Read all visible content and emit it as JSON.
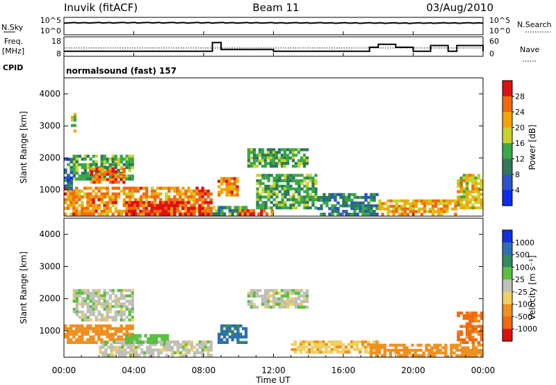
{
  "header": {
    "title": "Inuvik (fitACF)",
    "beam": "Beam 11",
    "date": "03/Aug/2010"
  },
  "nsky": {
    "label": "N.Sky",
    "ticks": [
      "10^5",
      "10^0"
    ],
    "right_label": "N.Search",
    "right_ticks": [
      "10^5",
      "10^0"
    ]
  },
  "freq": {
    "label_line1": "Freq.",
    "label_line2": "[MHz]",
    "ticks": [
      "18",
      "8"
    ],
    "right_label": "Nave",
    "right_ticks": [
      "60",
      "0"
    ]
  },
  "cpid": {
    "label": "CPID",
    "mode": "normalsound (fast) 157"
  },
  "time_axis": {
    "label": "Time UT",
    "ticks": [
      "00:00",
      "04:00",
      "08:00",
      "12:00",
      "16:00",
      "20:00",
      "00:00"
    ]
  },
  "power_panel": {
    "ylabel": "Slant Range [km]",
    "yticks": [
      "4000",
      "3000",
      "2000",
      "1000"
    ],
    "colorbar_label": "Power [dB]",
    "colorbar_ticks": [
      "28",
      "24",
      "20",
      "16",
      "12",
      "8",
      "4"
    ],
    "colors": [
      "#0a2ff0",
      "#2b55c8",
      "#2f7a5a",
      "#3aa84a",
      "#c8d22a",
      "#f5a400",
      "#f06a10",
      "#e01010"
    ]
  },
  "velocity_panel": {
    "ylabel": "Slant Range [km]",
    "yticks": [
      "4000",
      "3000",
      "2000",
      "1000"
    ],
    "colorbar_label": "Velocity [m s⁻¹]",
    "colorbar_ticks": [
      "1000",
      "500",
      "100",
      "25",
      "-25",
      "-100",
      "-500",
      "-1000"
    ],
    "colors": [
      "#1030e0",
      "#2e6fb0",
      "#2f8a5e",
      "#5ac040",
      "#c0c0b8",
      "#f0d060",
      "#f09020",
      "#f06a10",
      "#e01010"
    ]
  },
  "chart_data": [
    {
      "type": "line",
      "title": "N.Sky / N.Search",
      "x": [
        "00:00",
        "04:00",
        "08:00",
        "12:00",
        "16:00",
        "20:00",
        "00:00"
      ],
      "series": [
        {
          "name": "N.Sky",
          "values": [
            6000,
            7000,
            6500,
            6000,
            5500,
            5000,
            5500
          ]
        },
        {
          "name": "N.Search",
          "values": [
            1,
            1,
            1,
            1,
            1,
            1,
            1
          ]
        }
      ],
      "ylim": [
        1,
        100000
      ],
      "yscale": "log"
    },
    {
      "type": "line",
      "title": "Freq. [MHz] / Nave",
      "x": [
        "00:00",
        "04:00",
        "08:00",
        "08:30",
        "09:00",
        "12:00",
        "16:00",
        "17:30",
        "18:00",
        "19:00",
        "20:00",
        "21:00",
        "22:00",
        "22:30",
        "24:00"
      ],
      "series": [
        {
          "name": "Freq. [MHz]",
          "values": [
            10.5,
            10.5,
            10.5,
            15.5,
            11.5,
            10.5,
            10.5,
            12.8,
            14.5,
            12.8,
            10.5,
            13.8,
            10.5,
            13.8,
            10.5
          ]
        },
        {
          "name": "Nave",
          "values": [
            24,
            24,
            24,
            24,
            24,
            24,
            24,
            24,
            24,
            24,
            24,
            24,
            24,
            24,
            24
          ]
        }
      ],
      "ylim": [
        8,
        18
      ]
    },
    {
      "type": "heatmap",
      "title": "Power [dB]",
      "xlabel": "Time UT",
      "ylabel": "Slant Range [km]",
      "xlim": [
        0,
        24
      ],
      "ylim": [
        180,
        4500
      ],
      "clim": [
        0,
        30
      ],
      "regions": [
        {
          "t0": 0.0,
          "t1": 8.5,
          "r0": 200,
          "r1": 1100,
          "value": 24
        },
        {
          "t0": 3.5,
          "t1": 8.5,
          "r0": 200,
          "r1": 650,
          "value": 30
        },
        {
          "t0": 0.5,
          "t1": 4.0,
          "r0": 1300,
          "r1": 2100,
          "value": 14
        },
        {
          "t0": 1.5,
          "t1": 3.5,
          "r0": 1200,
          "r1": 1700,
          "value": 26
        },
        {
          "t0": 0.0,
          "t1": 0.5,
          "r0": 1000,
          "r1": 2000,
          "value": 8
        },
        {
          "t0": 0.4,
          "t1": 0.7,
          "r0": 2800,
          "r1": 3400,
          "value": 18
        },
        {
          "t0": 8.5,
          "t1": 10.5,
          "r0": 200,
          "r1": 500,
          "value": 12
        },
        {
          "t0": 8.8,
          "t1": 10.0,
          "r0": 800,
          "r1": 1400,
          "value": 24
        },
        {
          "t0": 10.0,
          "t1": 12.0,
          "r0": 200,
          "r1": 400,
          "value": 26
        },
        {
          "t0": 10.5,
          "t1": 14.0,
          "r0": 1700,
          "r1": 2300,
          "value": 14
        },
        {
          "t0": 11.0,
          "t1": 14.5,
          "r0": 400,
          "r1": 1500,
          "value": 14
        },
        {
          "t0": 14.5,
          "t1": 18.0,
          "r0": 200,
          "r1": 900,
          "value": 10
        },
        {
          "t0": 18.0,
          "t1": 22.5,
          "r0": 200,
          "r1": 700,
          "value": 22
        },
        {
          "t0": 22.5,
          "t1": 24.0,
          "r0": 400,
          "r1": 1500,
          "value": 20
        }
      ]
    },
    {
      "type": "heatmap",
      "title": "Velocity [m s⁻¹]",
      "xlabel": "Time UT",
      "ylabel": "Slant Range [km]",
      "xlim": [
        0,
        24
      ],
      "ylim": [
        180,
        4500
      ],
      "regions": [
        {
          "t0": 0.0,
          "t1": 4.0,
          "r0": 600,
          "r1": 1200,
          "value": -300
        },
        {
          "t0": 0.5,
          "t1": 4.0,
          "r0": 1300,
          "r1": 2300,
          "value": 0
        },
        {
          "t0": 2.0,
          "t1": 8.5,
          "r0": 200,
          "r1": 700,
          "value": 0
        },
        {
          "t0": 3.5,
          "t1": 6.0,
          "r0": 600,
          "r1": 900,
          "value": 60
        },
        {
          "t0": 8.8,
          "t1": 10.5,
          "r0": 600,
          "r1": 1200,
          "value": 600
        },
        {
          "t0": 10.5,
          "t1": 14.0,
          "r0": 1700,
          "r1": 2300,
          "value": 0
        },
        {
          "t0": 13.0,
          "t1": 18.0,
          "r0": 300,
          "r1": 700,
          "value": -80
        },
        {
          "t0": 17.5,
          "t1": 24.0,
          "r0": 200,
          "r1": 600,
          "value": -300
        },
        {
          "t0": 22.5,
          "t1": 24.0,
          "r0": 600,
          "r1": 1600,
          "value": -600
        }
      ]
    }
  ]
}
